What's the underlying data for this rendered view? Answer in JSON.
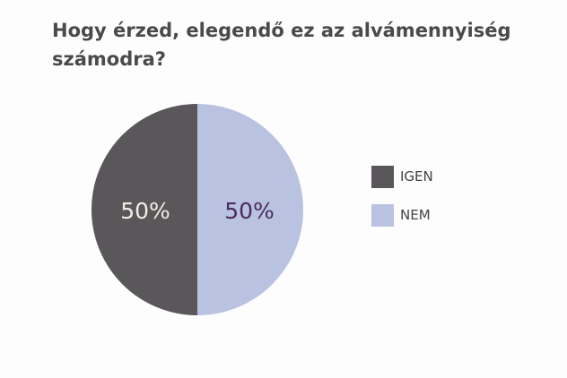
{
  "chart_data": {
    "type": "pie",
    "title": "Hogy érzed, elegendő ez az alvámennyiség számodra?",
    "categories": [
      "IGEN",
      "NEM"
    ],
    "values": [
      50,
      50
    ],
    "labels": [
      "50%",
      "50%"
    ],
    "colors": [
      "#595759",
      "#b9c3e1"
    ],
    "label_colors": [
      "#f2ede6",
      "#4a2d5a"
    ],
    "legend": "right"
  }
}
